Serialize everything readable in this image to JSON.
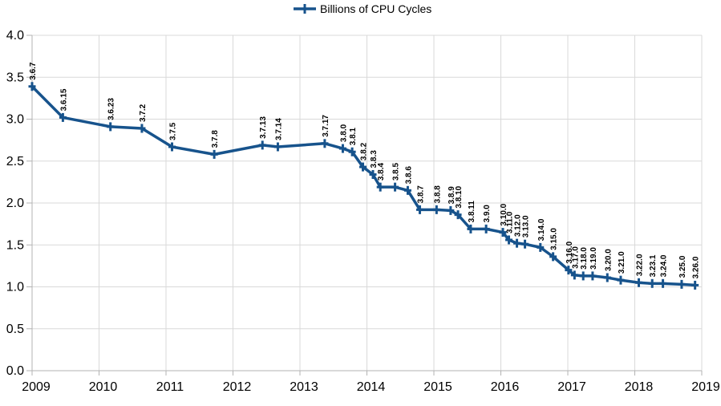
{
  "colors": {
    "series": "#17538c",
    "grid": "#d9d9d9",
    "axis": "#b3b3b3",
    "text": "#000000",
    "background": "#ffffff"
  },
  "chart_data": {
    "type": "line",
    "title": "",
    "xlabel": "",
    "ylabel": "",
    "xlim": [
      2009,
      2019
    ],
    "ylim": [
      0.0,
      4.0
    ],
    "x_ticks": [
      "2009",
      "2010",
      "2011",
      "2012",
      "2013",
      "2014",
      "2015",
      "2016",
      "2017",
      "2018",
      "2019"
    ],
    "y_ticks": [
      "0.0",
      "0.5",
      "1.0",
      "1.5",
      "2.0",
      "2.5",
      "3.0",
      "3.5",
      "4.0"
    ],
    "grid": true,
    "legend_position": "top-center",
    "point_labels_rotated": true,
    "series": [
      {
        "name": "Billions of CPU Cycles",
        "marker": "plus",
        "points": [
          {
            "label": "3.6.7",
            "x": 2009.0,
            "y": 3.39
          },
          {
            "label": "3.6.15",
            "x": 2009.46,
            "y": 3.02
          },
          {
            "label": "3.6.23",
            "x": 2010.17,
            "y": 2.91
          },
          {
            "label": "3.7.2",
            "x": 2010.64,
            "y": 2.89
          },
          {
            "label": "3.7.5",
            "x": 2011.09,
            "y": 2.67
          },
          {
            "label": "3.7.8",
            "x": 2011.72,
            "y": 2.58
          },
          {
            "label": "3.7.13",
            "x": 2012.44,
            "y": 2.69
          },
          {
            "label": "3.7.14",
            "x": 2012.67,
            "y": 2.67
          },
          {
            "label": "3.7.17",
            "x": 2013.37,
            "y": 2.71
          },
          {
            "label": "3.8.0",
            "x": 2013.64,
            "y": 2.65
          },
          {
            "label": "3.8.1",
            "x": 2013.78,
            "y": 2.61
          },
          {
            "label": "3.8.2",
            "x": 2013.94,
            "y": 2.43
          },
          {
            "label": "3.8.3",
            "x": 2014.09,
            "y": 2.34
          },
          {
            "label": "3.8.4",
            "x": 2014.2,
            "y": 2.19
          },
          {
            "label": "3.8.5",
            "x": 2014.42,
            "y": 2.19
          },
          {
            "label": "3.8.6",
            "x": 2014.61,
            "y": 2.15
          },
          {
            "label": "3.8.7",
            "x": 2014.79,
            "y": 1.92
          },
          {
            "label": "3.8.8",
            "x": 2015.04,
            "y": 1.92
          },
          {
            "label": "3.8.9",
            "x": 2015.25,
            "y": 1.91
          },
          {
            "label": "3.8.10",
            "x": 2015.36,
            "y": 1.86
          },
          {
            "label": "3.8.11",
            "x": 2015.55,
            "y": 1.69
          },
          {
            "label": "3.9.0",
            "x": 2015.78,
            "y": 1.69
          },
          {
            "label": "3.10.0",
            "x": 2016.03,
            "y": 1.65
          },
          {
            "label": "3.11.0",
            "x": 2016.12,
            "y": 1.56
          },
          {
            "label": "3.12.0",
            "x": 2016.24,
            "y": 1.52
          },
          {
            "label": "3.13.0",
            "x": 2016.36,
            "y": 1.51
          },
          {
            "label": "3.14.0",
            "x": 2016.59,
            "y": 1.47
          },
          {
            "label": "3.15.0",
            "x": 2016.78,
            "y": 1.36
          },
          {
            "label": "3.16.0",
            "x": 2017.01,
            "y": 1.2
          },
          {
            "label": "3.17.0",
            "x": 2017.1,
            "y": 1.14
          },
          {
            "label": "3.18.0",
            "x": 2017.23,
            "y": 1.13
          },
          {
            "label": "3.19.0",
            "x": 2017.37,
            "y": 1.13
          },
          {
            "label": "3.20.0",
            "x": 2017.59,
            "y": 1.11
          },
          {
            "label": "3.21.0",
            "x": 2017.79,
            "y": 1.08
          },
          {
            "label": "3.22.0",
            "x": 2018.06,
            "y": 1.05
          },
          {
            "label": "3.23.1",
            "x": 2018.26,
            "y": 1.04
          },
          {
            "label": "3.24.0",
            "x": 2018.42,
            "y": 1.04
          },
          {
            "label": "3.25.0",
            "x": 2018.7,
            "y": 1.03
          },
          {
            "label": "3.26.0",
            "x": 2018.9,
            "y": 1.02
          }
        ]
      }
    ]
  }
}
